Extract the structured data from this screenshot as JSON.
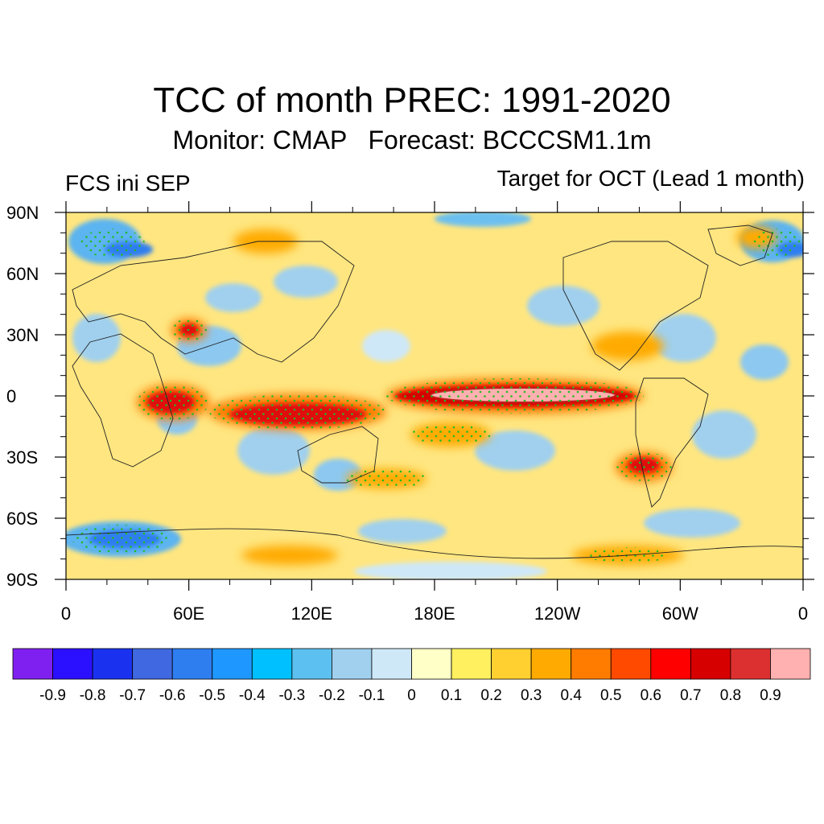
{
  "header": {
    "title": "TCC of month PREC: 1991-2020",
    "subtitle": "Monitor: CMAP   Forecast: BCCCSM1.1m",
    "left_label": "FCS ini SEP",
    "right_label": "Target for OCT (Lead 1 month)"
  },
  "map": {
    "lat_ticks": [
      "90N",
      "60N",
      "30N",
      "0",
      "30S",
      "60S",
      "90S"
    ],
    "lon_ticks": [
      "0",
      "60E",
      "120E",
      "180E",
      "120W",
      "60W",
      "0"
    ],
    "projection": "equirectangular (cylindrical equidistant)",
    "longitude_range": "0 to 360 (centered on 180)",
    "stippling": "green dots mark significant correlation",
    "features": [
      {
        "name": "equatorial central-eastern Pacific",
        "max_value_band": "0.9"
      },
      {
        "name": "Maritime Continent",
        "value_band": "0.7-0.8"
      },
      {
        "name": "western equatorial Indian Ocean",
        "value_band": "0.6-0.7"
      },
      {
        "name": "Arctic Atlantic sector",
        "value_band": "-0.5 to -0.6"
      },
      {
        "name": "Southern Ocean near 0-30E",
        "value_band": "-0.5 to -0.6"
      }
    ]
  },
  "colorbar": {
    "labels": [
      "-0.9",
      "-0.8",
      "-0.7",
      "-0.6",
      "-0.5",
      "-0.4",
      "-0.3",
      "-0.2",
      "-0.1",
      "0",
      "0.1",
      "0.2",
      "0.3",
      "0.4",
      "0.5",
      "0.6",
      "0.7",
      "0.8",
      "0.9"
    ],
    "colors": [
      "#8020f0",
      "#2b10ff",
      "#1a32f0",
      "#4068e0",
      "#2e7ef0",
      "#1e98ff",
      "#00c0ff",
      "#5cc0f0",
      "#a0d0ee",
      "#cfe8f8",
      "#ffffc8",
      "#fff060",
      "#ffd030",
      "#ffaa00",
      "#ff7c00",
      "#ff4a00",
      "#ff0000",
      "#d60000",
      "#dc3030",
      "#ffb0b0"
    ]
  }
}
